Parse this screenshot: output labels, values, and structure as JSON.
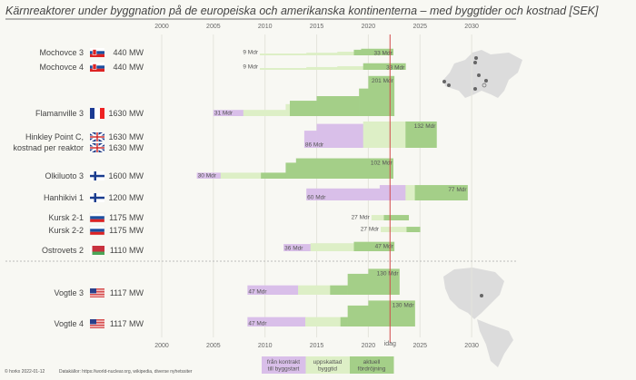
{
  "title": "Kärnreaktorer under byggnation på de europeiska och amerikanska kontinenterna – med byggtider och kostnad [SEK]",
  "footer": {
    "copyright": "© horkx 2022-01-12",
    "sources": "Datakällor: https://world-nuclear.org, wikipedia, diverse nyhetssiter"
  },
  "colors": {
    "contract": "#d9bfe9",
    "estimated": "#ddefc6",
    "delay": "#a4cf88",
    "today": "#d24a4a",
    "background": "#f8f8f3"
  },
  "chart_data": {
    "type": "bar",
    "subtype": "gantt-step",
    "x_ticks": [
      2000,
      2005,
      2010,
      2015,
      2020,
      2025,
      2030
    ],
    "xlim": [
      1996,
      2033
    ],
    "grid": true,
    "today": {
      "year": 2022.1,
      "label": "idag"
    },
    "legend": [
      {
        "phase": "contract",
        "label": "från kontrakt till byggstart"
      },
      {
        "phase": "estimated",
        "label": "uppskattad byggtid"
      },
      {
        "phase": "delay",
        "label": "aktuell fördröjning"
      }
    ],
    "projects": [
      {
        "name": "Mochovce 3",
        "flag": "SK",
        "mw": "440 MW",
        "start_label": "9 Mdr",
        "end_label": "33 Mdr",
        "segments": [
          [
            "estimated",
            2009.5,
            2014.0,
            9
          ],
          [
            "estimated",
            2014.0,
            2017.0,
            13
          ],
          [
            "estimated",
            2017.0,
            2018.6,
            18
          ],
          [
            "delay",
            2018.6,
            2019.3,
            28
          ],
          [
            "delay",
            2019.3,
            2022.4,
            33
          ]
        ]
      },
      {
        "name": "Mochovce 4",
        "flag": "SK",
        "mw": "440 MW",
        "start_label": "9 Mdr",
        "end_label": "33 Mdr",
        "segments": [
          [
            "estimated",
            2009.5,
            2014.0,
            9
          ],
          [
            "estimated",
            2014.0,
            2017.0,
            14
          ],
          [
            "estimated",
            2017.0,
            2019.5,
            18
          ],
          [
            "delay",
            2019.5,
            2023.6,
            33
          ]
        ]
      },
      {
        "name": "Flamanville 3",
        "flag": "FR",
        "mw": "1630 MW",
        "start_label": "31 Mdr",
        "end_label": "201 Mdr",
        "segments": [
          [
            "contract",
            2005.0,
            2007.9,
            31
          ],
          [
            "estimated",
            2007.9,
            2012.0,
            31
          ],
          [
            "estimated",
            2012.0,
            2012.4,
            60
          ],
          [
            "delay",
            2012.4,
            2015.0,
            77
          ],
          [
            "delay",
            2015.0,
            2019.1,
            100
          ],
          [
            "delay",
            2019.1,
            2020.0,
            138
          ],
          [
            "delay",
            2020.0,
            2022.5,
            201
          ]
        ]
      },
      {
        "name": "Hinkley Point C,",
        "name2": "kostnad per reaktor",
        "flag": "GB",
        "flag2": "GB",
        "mw": "1630 MW",
        "mw2": "1630 MW",
        "start_label": "86 Mdr",
        "end_label": "132 Mdr",
        "segments": [
          [
            "contract",
            2013.8,
            2015.0,
            86
          ],
          [
            "contract",
            2015.0,
            2019.5,
            120
          ],
          [
            "estimated",
            2019.5,
            2023.6,
            132
          ],
          [
            "delay",
            2023.6,
            2026.6,
            132
          ]
        ]
      },
      {
        "name": "Olkiluoto 3",
        "flag": "FI",
        "mw": "1600 MW",
        "start_label": "30 Mdr",
        "end_label": "102 Mdr",
        "segments": [
          [
            "contract",
            2003.4,
            2005.7,
            30
          ],
          [
            "estimated",
            2005.7,
            2009.6,
            30
          ],
          [
            "delay",
            2009.6,
            2012.0,
            30
          ],
          [
            "delay",
            2012.0,
            2013.0,
            80
          ],
          [
            "delay",
            2013.0,
            2022.4,
            102
          ]
        ]
      },
      {
        "name": "Hanhikivi 1",
        "flag": "FI",
        "mw": "1200 MW",
        "start_label": "60 Mdr",
        "end_label": "77 Mdr",
        "segments": [
          [
            "contract",
            2014.0,
            2021.1,
            60
          ],
          [
            "contract",
            2021.1,
            2023.6,
            77
          ],
          [
            "estimated",
            2023.6,
            2024.5,
            77
          ],
          [
            "delay",
            2024.5,
            2029.6,
            77
          ]
        ]
      },
      {
        "name": "Kursk 2-1",
        "flag": "RU",
        "mw": "1175 MW",
        "start_label": "27 Mdr",
        "end_label": "",
        "segments": [
          [
            "estimated",
            2020.3,
            2021.5,
            27
          ],
          [
            "delay",
            2021.5,
            2023.9,
            27
          ]
        ]
      },
      {
        "name": "Kursk 2-2",
        "flag": "RU",
        "mw": "1175 MW",
        "start_label": "27 Mdr",
        "end_label": "",
        "segments": [
          [
            "estimated",
            2021.2,
            2023.7,
            27
          ],
          [
            "delay",
            2023.7,
            2025.0,
            27
          ]
        ]
      },
      {
        "name": "Ostrovets 2",
        "flag": "BY",
        "mw": "1110 MW",
        "start_label": "36 Mdr",
        "end_label": "47 Mdr",
        "segments": [
          [
            "contract",
            2011.8,
            2014.4,
            36
          ],
          [
            "estimated",
            2014.4,
            2018.6,
            40
          ],
          [
            "delay",
            2018.6,
            2022.5,
            47
          ]
        ]
      },
      {
        "name": "Vogtle 3",
        "flag": "US",
        "mw": "1117 MW",
        "start_label": "47 Mdr",
        "end_label": "130 Mdr",
        "segments": [
          [
            "contract",
            2008.3,
            2013.2,
            47
          ],
          [
            "estimated",
            2013.2,
            2016.3,
            47
          ],
          [
            "delay",
            2016.3,
            2018.0,
            47
          ],
          [
            "delay",
            2018.0,
            2020.0,
            105
          ],
          [
            "delay",
            2020.0,
            2023.0,
            130
          ]
        ]
      },
      {
        "name": "Vogtle 4",
        "flag": "US",
        "mw": "1117 MW",
        "start_label": "47 Mdr",
        "end_label": "130 Mdr",
        "segments": [
          [
            "contract",
            2008.3,
            2013.9,
            47
          ],
          [
            "estimated",
            2013.9,
            2017.3,
            47
          ],
          [
            "delay",
            2017.3,
            2018.0,
            47
          ],
          [
            "delay",
            2018.0,
            2020.0,
            105
          ],
          [
            "delay",
            2020.0,
            2024.5,
            130
          ]
        ]
      }
    ]
  }
}
